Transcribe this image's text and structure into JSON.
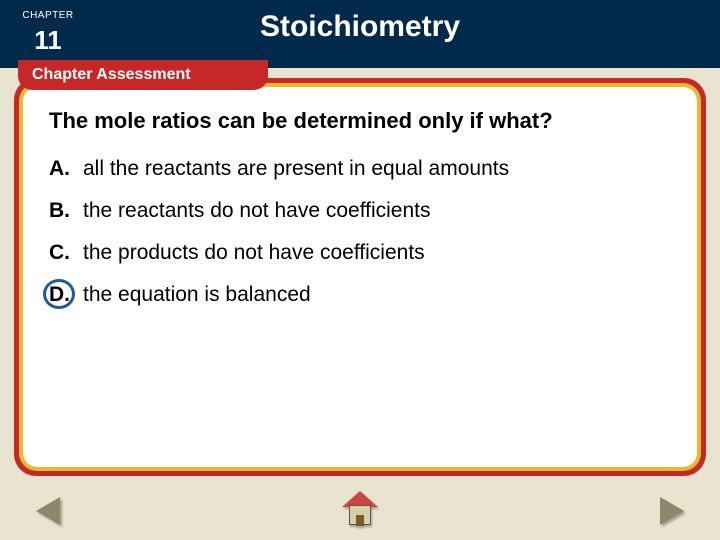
{
  "header": {
    "chapter_label": "CHAPTER",
    "chapter_number": "11",
    "title": "Stoichiometry"
  },
  "section_tab": "Chapter Assessment",
  "question": "The mole ratios can be determined only if what?",
  "options": [
    {
      "letter": "A.",
      "text": "all the reactants are present in equal amounts",
      "correct": false
    },
    {
      "letter": "B.",
      "text": "the reactants do not have coefficients",
      "correct": false
    },
    {
      "letter": "C.",
      "text": "the products do not have coefficients",
      "correct": false
    },
    {
      "letter": "D.",
      "text": "the equation is balanced",
      "correct": true
    }
  ],
  "colors": {
    "header_bg": "#012a4a",
    "accent_red": "#c62828",
    "accent_gold": "#e8b92e",
    "page_bg": "#e8e4d0",
    "circle": "#1e5a9c"
  }
}
